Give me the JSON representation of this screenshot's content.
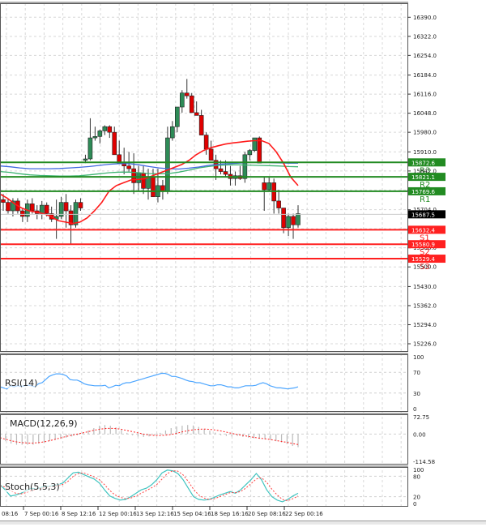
{
  "chart_data": {
    "type": "candlestick",
    "title": "",
    "price_pane": {
      "y_ticks": [
        "16390.0",
        "16322.0",
        "16254.0",
        "16184.0",
        "16116.0",
        "16048.0",
        "15980.0",
        "15910.0",
        "15842.0",
        "15774.0",
        "15704.0",
        "15636.0",
        "15568.0",
        "15500.0",
        "15430.0",
        "15362.0",
        "15294.0",
        "15226.0"
      ],
      "ylim": [
        15200,
        16440
      ],
      "current_price": {
        "value": "15687.5",
        "color": "#000000"
      },
      "levels": [
        {
          "name": "R3",
          "value": 15872.6,
          "label": "15872.6",
          "color": "#228B22"
        },
        {
          "name": "R2",
          "value": 15821.1,
          "label": "15821.1",
          "color": "#228B22"
        },
        {
          "name": "R1",
          "value": 15769.6,
          "label": "15769.6",
          "color": "#228B22"
        },
        {
          "name": "S1",
          "value": 15632.4,
          "label": "15632.4",
          "color": "#ff2020"
        },
        {
          "name": "S2",
          "value": 15580.9,
          "label": "15580.9",
          "color": "#ff2020"
        },
        {
          "name": "S3",
          "value": 15529.4,
          "label": "15529.4",
          "color": "#ff2020"
        }
      ],
      "candles": [
        [
          15740,
          15760,
          15700,
          15730
        ],
        [
          15730,
          15745,
          15690,
          15700
        ],
        [
          15700,
          15745,
          15680,
          15735
        ],
        [
          15735,
          15745,
          15690,
          15700
        ],
        [
          15700,
          15710,
          15660,
          15680
        ],
        [
          15680,
          15740,
          15660,
          15725
        ],
        [
          15725,
          15745,
          15690,
          15700
        ],
        [
          15700,
          15720,
          15670,
          15690
        ],
        [
          15690,
          15735,
          15670,
          15720
        ],
        [
          15720,
          15730,
          15680,
          15690
        ],
        [
          15690,
          15715,
          15660,
          15670
        ],
        [
          15670,
          15740,
          15600,
          15680
        ],
        [
          15680,
          15750,
          15670,
          15730
        ],
        [
          15730,
          15760,
          15640,
          15700
        ],
        [
          15700,
          15720,
          15580,
          15650
        ],
        [
          15650,
          15740,
          15640,
          15730
        ],
        [
          15730,
          15745,
          15700,
          15710
        ],
        [
          15880,
          15900,
          15870,
          15885
        ],
        [
          15885,
          16030,
          15880,
          15960
        ],
        [
          15960,
          16000,
          15950,
          15965
        ],
        [
          15965,
          15990,
          15940,
          15985
        ],
        [
          15985,
          16005,
          15970,
          16000
        ],
        [
          16000,
          16005,
          15960,
          15980
        ],
        [
          15980,
          16000,
          15910,
          15900
        ],
        [
          15900,
          15950,
          15880,
          15870
        ],
        [
          15870,
          15925,
          15830,
          15860
        ],
        [
          15860,
          15910,
          15840,
          15850
        ],
        [
          15850,
          15905,
          15760,
          15800
        ],
        [
          15800,
          15860,
          15770,
          15835
        ],
        [
          15835,
          15860,
          15760,
          15780
        ],
        [
          15780,
          15850,
          15740,
          15820
        ],
        [
          15820,
          15850,
          15770,
          15750
        ],
        [
          15750,
          15850,
          15730,
          15790
        ],
        [
          15790,
          15810,
          15740,
          15770
        ],
        [
          15770,
          16000,
          15760,
          15960
        ],
        [
          15960,
          16020,
          15950,
          16000
        ],
        [
          16000,
          16040,
          15980,
          16070
        ],
        [
          16070,
          16130,
          16050,
          16120
        ],
        [
          16120,
          16170,
          16100,
          16110
        ],
        [
          16110,
          16120,
          16060,
          16050
        ],
        [
          16050,
          16090,
          16040,
          16040
        ],
        [
          16040,
          16060,
          16000,
          15970
        ],
        [
          15970,
          15980,
          15900,
          15920
        ],
        [
          15920,
          15950,
          15880,
          15880
        ],
        [
          15880,
          15900,
          15810,
          15850
        ],
        [
          15850,
          15880,
          15830,
          15840
        ],
        [
          15840,
          15880,
          15820,
          15830
        ],
        [
          15830,
          15860,
          15790,
          15815
        ],
        [
          15815,
          15840,
          15790,
          15825
        ],
        [
          15825,
          15860,
          15810,
          15815
        ],
        [
          15815,
          15910,
          15800,
          15900
        ],
        [
          15900,
          15920,
          15880,
          15915
        ],
        [
          15915,
          15960,
          15910,
          15960
        ],
        [
          15960,
          15965,
          15890,
          15870
        ],
        [
          15800,
          15820,
          15700,
          15775
        ],
        [
          15775,
          15820,
          15770,
          15800
        ],
        [
          15800,
          15815,
          15690,
          15735
        ],
        [
          15735,
          15775,
          15690,
          15710
        ],
        [
          15710,
          15710,
          15620,
          15640
        ],
        [
          15640,
          15690,
          15610,
          15680
        ],
        [
          15680,
          15690,
          15600,
          15650
        ],
        [
          15650,
          15720,
          15640,
          15690
        ]
      ],
      "ma_red": [
        15760,
        15745,
        15725,
        15710,
        15700,
        15695,
        15690,
        15680,
        15665,
        15660,
        15655,
        15660,
        15675,
        15700,
        15730,
        15770,
        15790,
        15800,
        15810,
        15812,
        15815,
        15825,
        15835,
        15845,
        15855,
        15865,
        15880,
        15900,
        15915,
        15925,
        15932,
        15938,
        15942,
        15945,
        15948,
        15950,
        15950,
        15940,
        15910,
        15870,
        15820,
        15790
      ],
      "ma_blue": [
        15860,
        15857,
        15853,
        15850,
        15850,
        15850,
        15851,
        15853,
        15855,
        15858,
        15862,
        15866,
        15868,
        15868,
        15864,
        15858,
        15853,
        15850,
        15849,
        15852,
        15856,
        15862,
        15866,
        15868,
        15870,
        15872,
        15872,
        15872,
        15871,
        15870,
        15870
      ],
      "ma_green": [
        15840,
        15837,
        15832,
        15828,
        15826,
        15825,
        15824,
        15824,
        15825,
        15828,
        15832,
        15836,
        15838,
        15838,
        15836,
        15833,
        15832,
        15833,
        15838,
        15845,
        15853,
        15858,
        15862,
        15864,
        15864,
        15863,
        15862,
        15861,
        15860,
        15858,
        15857
      ]
    },
    "rsi_pane": {
      "label": "RSI(14)",
      "y_ticks": [
        "100",
        "70",
        "30",
        "0"
      ],
      "ylim": [
        0,
        100
      ],
      "values": [
        42,
        40,
        38,
        44,
        42,
        44,
        43,
        44,
        45,
        44,
        42,
        48,
        50,
        56,
        62,
        65,
        67,
        67,
        66,
        63,
        56,
        55,
        55,
        52,
        48,
        46,
        45,
        44,
        44,
        44,
        45,
        40,
        42,
        45,
        44,
        48,
        50,
        50,
        52,
        54,
        56,
        58,
        60,
        62,
        64,
        66,
        68,
        68,
        66,
        62,
        62,
        60,
        58,
        55,
        53,
        52,
        50,
        50,
        48,
        46,
        44,
        44,
        46,
        46,
        44,
        42,
        42,
        40,
        40,
        42,
        44,
        44,
        44,
        45,
        48,
        50,
        48,
        44,
        42,
        40,
        40,
        39,
        38,
        39,
        40,
        42
      ],
      "color": "#4da6ff"
    },
    "macd_pane": {
      "label": "MACD(12,26,9)",
      "y_ticks": [
        "72.75",
        "0.00",
        "-114.58"
      ],
      "ylim": [
        -114.58,
        72.75
      ],
      "histogram": [
        -20,
        -30,
        -40,
        -45,
        -45,
        -45,
        -45,
        -40,
        -35,
        -30,
        -25,
        -20,
        -15,
        -10,
        -5,
        5,
        15,
        25,
        35,
        38,
        35,
        28,
        18,
        5,
        -5,
        -10,
        -12,
        -10,
        -5,
        5,
        15,
        25,
        32,
        35,
        38,
        36,
        30,
        22,
        14,
        6,
        -5,
        -8,
        -10,
        -8,
        -12,
        -15,
        -18,
        -20,
        -22,
        -25,
        -30,
        -35,
        -42,
        -50,
        -55
      ],
      "signal": [
        -15,
        -22,
        -28,
        -33,
        -36,
        -38,
        -38,
        -36,
        -33,
        -28,
        -22,
        -16,
        -10,
        -5,
        0,
        5,
        10,
        16,
        20,
        23,
        24,
        23,
        20,
        15,
        10,
        5,
        0,
        -4,
        -6,
        -6,
        -5,
        -2,
        3,
        9,
        14,
        18,
        20,
        21,
        20,
        17,
        13,
        8,
        3,
        -2,
        -6,
        -10,
        -14,
        -17,
        -20,
        -23,
        -27,
        -31,
        -35,
        -40,
        -44
      ],
      "hist_color": "#bbbbbb",
      "signal_color": "#ff2020"
    },
    "stoch_pane": {
      "label": "Stoch(5,5,3)",
      "y_ticks": [
        "100",
        "80",
        "20",
        "0"
      ],
      "ylim": [
        0,
        100
      ],
      "main": [
        55,
        40,
        22,
        25,
        30,
        38,
        45,
        42,
        48,
        50,
        52,
        55,
        60,
        75,
        90,
        92,
        85,
        78,
        72,
        60,
        40,
        22,
        15,
        10,
        12,
        20,
        30,
        40,
        45,
        55,
        70,
        90,
        98,
        96,
        88,
        70,
        45,
        20,
        12,
        10,
        12,
        18,
        25,
        30,
        35,
        30,
        40,
        55,
        70,
        88,
        70,
        40,
        20,
        10,
        5,
        12,
        22,
        30
      ],
      "signal": [
        52,
        48,
        38,
        30,
        28,
        32,
        38,
        42,
        45,
        48,
        50,
        52,
        56,
        65,
        80,
        88,
        90,
        84,
        78,
        70,
        55,
        38,
        25,
        18,
        14,
        16,
        22,
        30,
        38,
        46,
        56,
        72,
        88,
        96,
        95,
        84,
        65,
        42,
        25,
        16,
        12,
        14,
        20,
        26,
        32,
        32,
        35,
        45,
        58,
        72,
        76,
        62,
        42,
        25,
        12,
        8,
        14,
        22
      ],
      "main_color": "#40c4c0",
      "signal_color": "#ff4040"
    },
    "x_tick_labels": [
      "08:16",
      "7 Sep 00:16",
      "8 Sep 12:16",
      "12 Sep 00:16",
      "13 Sep 12:16",
      "15 Sep 04:16",
      "18 Sep 16:16",
      "20 Sep 08:16",
      "22 Sep 00:16"
    ]
  },
  "ui": {
    "rsi_title": "RSI(14)",
    "macd_title": "MACD(12,26,9)",
    "stoch_title": "Stoch(5,5,3)"
  }
}
